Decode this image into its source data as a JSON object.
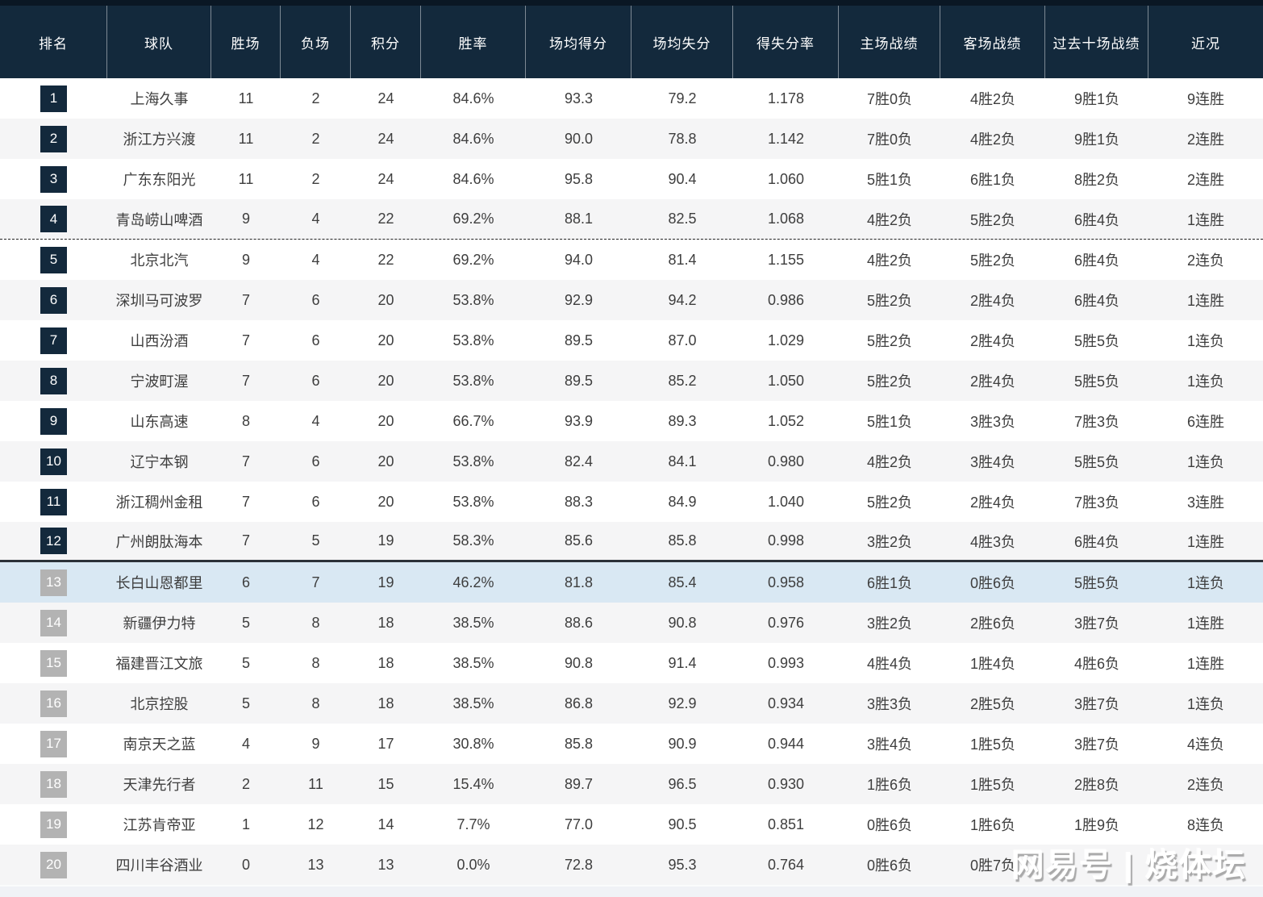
{
  "header": {
    "columns": [
      "排名",
      "球队",
      "胜场",
      "负场",
      "积分",
      "胜率",
      "场均得分",
      "场均失分",
      "得失分率",
      "主场战绩",
      "客场战绩",
      "过去十场战绩",
      "近况"
    ]
  },
  "rows": [
    [
      "1",
      "上海久事",
      "11",
      "2",
      "24",
      "84.6%",
      "93.3",
      "79.2",
      "1.178",
      "7胜0负",
      "4胜2负",
      "9胜1负",
      "9连胜"
    ],
    [
      "2",
      "浙江方兴渡",
      "11",
      "2",
      "24",
      "84.6%",
      "90.0",
      "78.8",
      "1.142",
      "7胜0负",
      "4胜2负",
      "9胜1负",
      "2连胜"
    ],
    [
      "3",
      "广东东阳光",
      "11",
      "2",
      "24",
      "84.6%",
      "95.8",
      "90.4",
      "1.060",
      "5胜1负",
      "6胜1负",
      "8胜2负",
      "2连胜"
    ],
    [
      "4",
      "青岛崂山啤酒",
      "9",
      "4",
      "22",
      "69.2%",
      "88.1",
      "82.5",
      "1.068",
      "4胜2负",
      "5胜2负",
      "6胜4负",
      "1连胜"
    ],
    [
      "5",
      "北京北汽",
      "9",
      "4",
      "22",
      "69.2%",
      "94.0",
      "81.4",
      "1.155",
      "4胜2负",
      "5胜2负",
      "6胜4负",
      "2连负"
    ],
    [
      "6",
      "深圳马可波罗",
      "7",
      "6",
      "20",
      "53.8%",
      "92.9",
      "94.2",
      "0.986",
      "5胜2负",
      "2胜4负",
      "6胜4负",
      "1连胜"
    ],
    [
      "7",
      "山西汾酒",
      "7",
      "6",
      "20",
      "53.8%",
      "89.5",
      "87.0",
      "1.029",
      "5胜2负",
      "2胜4负",
      "5胜5负",
      "1连负"
    ],
    [
      "8",
      "宁波町渥",
      "7",
      "6",
      "20",
      "53.8%",
      "89.5",
      "85.2",
      "1.050",
      "5胜2负",
      "2胜4负",
      "5胜5负",
      "1连负"
    ],
    [
      "9",
      "山东高速",
      "8",
      "4",
      "20",
      "66.7%",
      "93.9",
      "89.3",
      "1.052",
      "5胜1负",
      "3胜3负",
      "7胜3负",
      "6连胜"
    ],
    [
      "10",
      "辽宁本钢",
      "7",
      "6",
      "20",
      "53.8%",
      "82.4",
      "84.1",
      "0.980",
      "4胜2负",
      "3胜4负",
      "5胜5负",
      "1连负"
    ],
    [
      "11",
      "浙江稠州金租",
      "7",
      "6",
      "20",
      "53.8%",
      "88.3",
      "84.9",
      "1.040",
      "5胜2负",
      "2胜4负",
      "7胜3负",
      "3连胜"
    ],
    [
      "12",
      "广州朗肽海本",
      "7",
      "5",
      "19",
      "58.3%",
      "85.6",
      "85.8",
      "0.998",
      "3胜2负",
      "4胜3负",
      "6胜4负",
      "1连胜"
    ],
    [
      "13",
      "长白山恩都里",
      "6",
      "7",
      "19",
      "46.2%",
      "81.8",
      "85.4",
      "0.958",
      "6胜1负",
      "0胜6负",
      "5胜5负",
      "1连负"
    ],
    [
      "14",
      "新疆伊力特",
      "5",
      "8",
      "18",
      "38.5%",
      "88.6",
      "90.8",
      "0.976",
      "3胜2负",
      "2胜6负",
      "3胜7负",
      "1连胜"
    ],
    [
      "15",
      "福建晋江文旅",
      "5",
      "8",
      "18",
      "38.5%",
      "90.8",
      "91.4",
      "0.993",
      "4胜4负",
      "1胜4负",
      "4胜6负",
      "1连胜"
    ],
    [
      "16",
      "北京控股",
      "5",
      "8",
      "18",
      "38.5%",
      "86.8",
      "92.9",
      "0.934",
      "3胜3负",
      "2胜5负",
      "3胜7负",
      "1连负"
    ],
    [
      "17",
      "南京天之蓝",
      "4",
      "9",
      "17",
      "30.8%",
      "85.8",
      "90.9",
      "0.944",
      "3胜4负",
      "1胜5负",
      "3胜7负",
      "4连负"
    ],
    [
      "18",
      "天津先行者",
      "2",
      "11",
      "15",
      "15.4%",
      "89.7",
      "96.5",
      "0.930",
      "1胜6负",
      "1胜5负",
      "2胜8负",
      "2连负"
    ],
    [
      "19",
      "江苏肯帝亚",
      "1",
      "12",
      "14",
      "7.7%",
      "77.0",
      "90.5",
      "0.851",
      "0胜6负",
      "1胜6负",
      "1胜9负",
      "8连负"
    ],
    [
      "20",
      "四川丰谷酒业",
      "0",
      "13",
      "13",
      "0.0%",
      "72.8",
      "95.3",
      "0.764",
      "0胜6负",
      "0胜7负",
      "",
      ""
    ]
  ],
  "markers": {
    "dashed_line_after_rank": 4,
    "solid_line_after_rank": 12,
    "highlighted_rank": 13
  },
  "watermark": "网易号 | 烧体坛",
  "colors": {
    "header_bg": "#13293C",
    "header_top_strip": "#0A1724",
    "rank_badge_navy": "#13293C",
    "rank_badge_gray": "#B3B3B3",
    "row_alt_bg": "#F5F5F6",
    "row_highlight_bg": "#D9E8F3",
    "body_text": "#3E3E3E"
  }
}
